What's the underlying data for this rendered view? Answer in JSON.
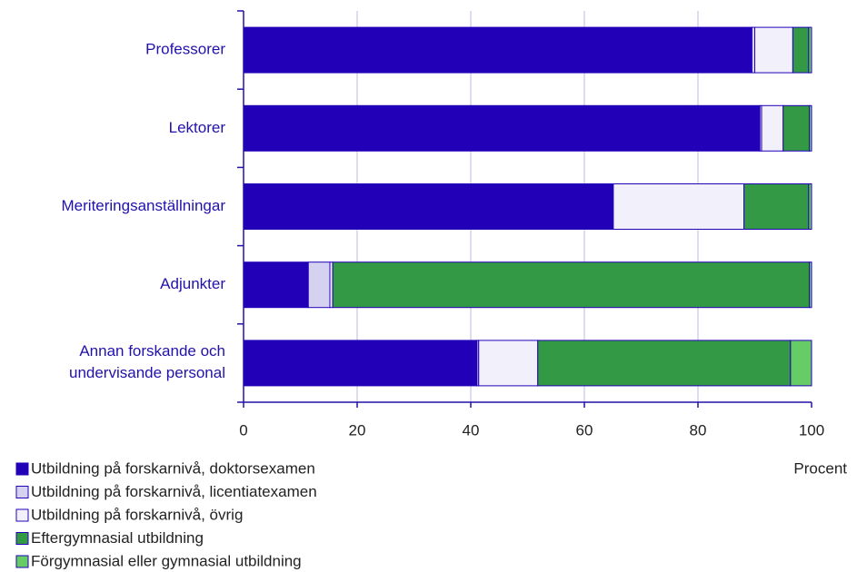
{
  "chart_data": {
    "type": "stacked_barh",
    "categories": [
      "Professorer",
      "Lektorer",
      "Meriteringsanställningar",
      "Adjunkter",
      "Annan forskande och\nundervisande personal"
    ],
    "series": [
      {
        "name": "Utbildning på forskarnivå, doktorsexamen",
        "color": "#2200b8",
        "values": [
          89.5,
          90.9,
          65.0,
          11.4,
          41.1
        ]
      },
      {
        "name": "Utbildning på forskarnivå, licentiatexamen",
        "color": "#d4d2f0",
        "values": [
          0.5,
          0.3,
          0.1,
          3.8,
          0.3
        ]
      },
      {
        "name": "Utbildning på forskarnivå, övrig",
        "color": "#f1f0fb",
        "values": [
          6.7,
          3.8,
          23.0,
          0.5,
          10.4
        ]
      },
      {
        "name": "Eftergymnasial utbildning",
        "color": "#339944",
        "values": [
          2.8,
          4.6,
          11.4,
          83.9,
          44.5
        ]
      },
      {
        "name": "Förgymnasial eller gymnasial utbildning",
        "color": "#66cc66",
        "values": [
          0.5,
          0.4,
          0.5,
          0.4,
          3.7
        ]
      }
    ],
    "xlabel": "Procent",
    "xlim": [
      0,
      100
    ],
    "xticks": [
      0,
      20,
      40,
      60,
      80,
      100
    ],
    "grid": true
  }
}
